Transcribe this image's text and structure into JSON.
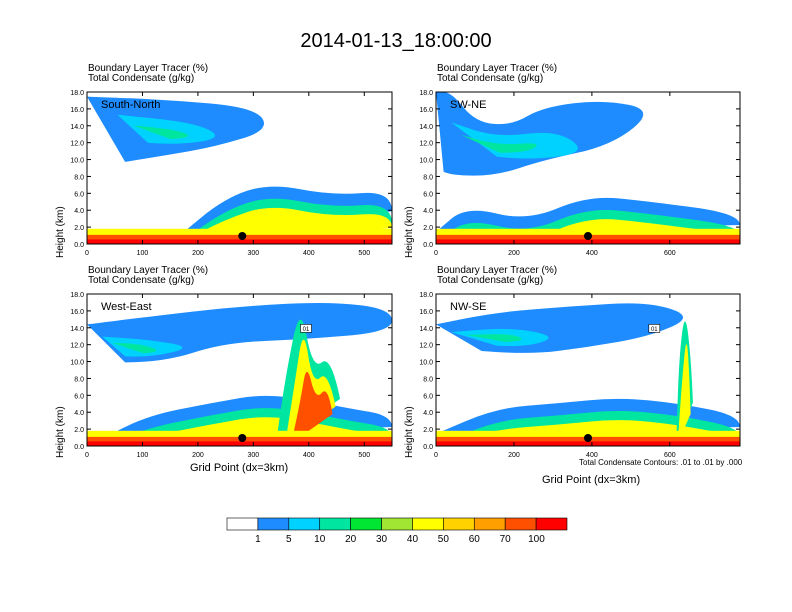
{
  "figure_title": "2014-01-13_18:00:00",
  "panels": [
    {
      "id": "sn",
      "title1": "Boundary Layer Tracer   (%)",
      "title2": "Total Condensate   (g/kg)",
      "label": "South-North",
      "ylabel": "Height (km)",
      "xlabel": "",
      "xticks": [
        "0",
        "100",
        "200",
        "300",
        "400",
        "500"
      ],
      "xmax": 550,
      "yticks": [
        "0.0",
        "2.0",
        "4.0",
        "6.0",
        "8.0",
        "10.0",
        "12.0",
        "14.0",
        "16.0",
        "18.0"
      ],
      "dot_x": 280
    },
    {
      "id": "swne",
      "title1": "Boundary Layer Tracer   (%)",
      "title2": "Total Condensate   (g/kg)",
      "label": "SW-NE",
      "ylabel": "Height (km)",
      "xlabel": "",
      "xticks": [
        "0",
        "200",
        "400",
        "600"
      ],
      "xmax": 780,
      "yticks": [
        "0.0",
        "2.0",
        "4.0",
        "6.0",
        "8.0",
        "10.0",
        "12.0",
        "14.0",
        "16.0",
        "18.0"
      ],
      "dot_x": 390
    },
    {
      "id": "we",
      "title1": "Boundary Layer Tracer   (%)",
      "title2": "Total Condensate   (g/kg)",
      "label": "West-East",
      "ylabel": "Height (km)",
      "xlabel": "Grid Point (dx=3km)",
      "xticks": [
        "0",
        "100",
        "200",
        "300",
        "400",
        "500"
      ],
      "xmax": 550,
      "yticks": [
        "0.0",
        "2.0",
        "4.0",
        "6.0",
        "8.0",
        "10.0",
        "12.0",
        "14.0",
        "16.0",
        "18.0"
      ],
      "dot_x": 280
    },
    {
      "id": "nwse",
      "title1": "Boundary Layer Tracer   (%)",
      "title2": "Total Condensate   (g/kg)",
      "label": "NW-SE",
      "ylabel": "Height (km)",
      "xlabel": "Grid Point (dx=3km)",
      "xticks": [
        "0",
        "200",
        "400",
        "600"
      ],
      "xmax": 780,
      "yticks": [
        "0.0",
        "2.0",
        "4.0",
        "6.0",
        "8.0",
        "10.0",
        "12.0",
        "14.0",
        "16.0",
        "18.0"
      ],
      "dot_x": 390
    }
  ],
  "contour_note": "Total Condensate Contours: .01 to .01 by .000",
  "contour_label": "01",
  "colorbar": {
    "colors": [
      "#ffffff",
      "#1e8cff",
      "#00d2ff",
      "#00e6a0",
      "#00e632",
      "#a0e632",
      "#ffff00",
      "#ffd200",
      "#ffa000",
      "#ff5000",
      "#ff0000"
    ],
    "labels": [
      "1",
      "5",
      "10",
      "20",
      "30",
      "40",
      "50",
      "60",
      "70",
      "100"
    ]
  },
  "colors": {
    "frame": "#000000",
    "text": "#000000"
  }
}
